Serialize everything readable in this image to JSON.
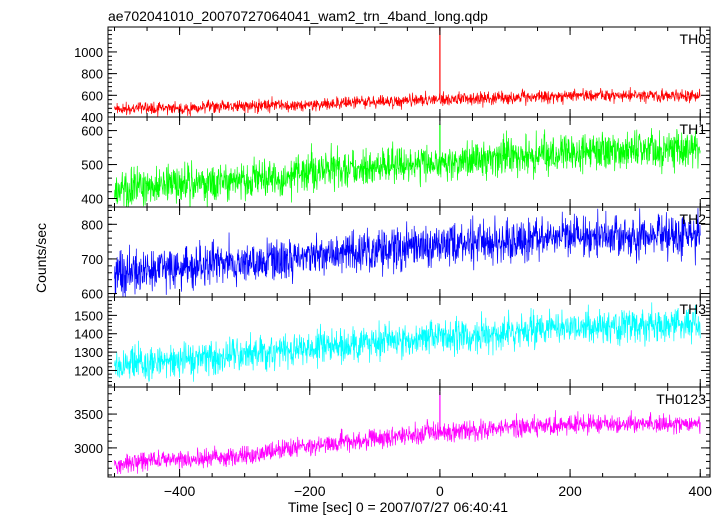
{
  "title": "ae702041010_20070727064041_wam2_trn_4band_long.qdp",
  "ylabel": "Counts/sec",
  "xlabel": "Time [sec] 0 = 2007/07/27 06:40:41",
  "chart_data": {
    "type": "line",
    "title": "ae702041010_20070727064041_wam2_trn_4band_long.qdp",
    "xlabel": "Time [sec] 0 = 2007/07/27 06:40:41",
    "ylabel": "Counts/sec",
    "xlim": [
      -510,
      415
    ],
    "xticks": [
      -400,
      -200,
      0,
      200,
      400
    ],
    "xtick_labels": [
      "−400",
      "−200",
      "0",
      "200",
      "400"
    ],
    "x_range": [
      -500,
      400
    ],
    "grid": false,
    "panels": [
      {
        "name": "TH0",
        "color": "#ff0000",
        "ylim": [
          400,
          1230
        ],
        "yticks": [
          400,
          600,
          800,
          1000
        ],
        "ytick_labels": [
          "400",
          "600",
          "800",
          "1000"
        ],
        "trend": [
          [
            -500,
            470
          ],
          [
            -200,
            515
          ],
          [
            0,
            560
          ],
          [
            200,
            595
          ],
          [
            400,
            595
          ]
        ],
        "noise": 28,
        "spike": {
          "x": 0,
          "y": 1230
        }
      },
      {
        "name": "TH1",
        "color": "#00ff00",
        "ylim": [
          375,
          640
        ],
        "yticks": [
          400,
          500,
          600
        ],
        "ytick_labels": [
          "400",
          "500",
          "600"
        ],
        "trend": [
          [
            -500,
            430
          ],
          [
            -300,
            455
          ],
          [
            -200,
            480
          ],
          [
            0,
            505
          ],
          [
            200,
            535
          ],
          [
            400,
            545
          ]
        ],
        "noise": 28,
        "spike": {
          "x": 0,
          "y": 620
        }
      },
      {
        "name": "TH2",
        "color": "#0000ff",
        "ylim": [
          590,
          850
        ],
        "yticks": [
          600,
          700,
          800
        ],
        "ytick_labels": [
          "600",
          "700",
          "800"
        ],
        "trend": [
          [
            -500,
            660
          ],
          [
            -300,
            690
          ],
          [
            -200,
            710
          ],
          [
            0,
            740
          ],
          [
            200,
            765
          ],
          [
            400,
            770
          ]
        ],
        "noise": 30,
        "spike": null
      },
      {
        "name": "TH3",
        "color": "#00ffff",
        "ylim": [
          1110,
          1600
        ],
        "yticks": [
          1200,
          1300,
          1400,
          1500
        ],
        "ytick_labels": [
          "1200",
          "1300",
          "1400",
          "1500"
        ],
        "trend": [
          [
            -500,
            1220
          ],
          [
            -300,
            1290
          ],
          [
            -200,
            1320
          ],
          [
            0,
            1380
          ],
          [
            200,
            1440
          ],
          [
            400,
            1460
          ]
        ],
        "noise": 45,
        "spike": null
      },
      {
        "name": "TH0123",
        "color": "#ff00ff",
        "ylim": [
          2570,
          3900
        ],
        "yticks": [
          3000,
          3500
        ],
        "ytick_labels": [
          "3000",
          "3500"
        ],
        "trend": [
          [
            -500,
            2760
          ],
          [
            -300,
            2880
          ],
          [
            -200,
            3030
          ],
          [
            0,
            3230
          ],
          [
            200,
            3350
          ],
          [
            400,
            3350
          ]
        ],
        "noise": 70,
        "spike": {
          "x": 0,
          "y": 3830
        }
      }
    ]
  }
}
